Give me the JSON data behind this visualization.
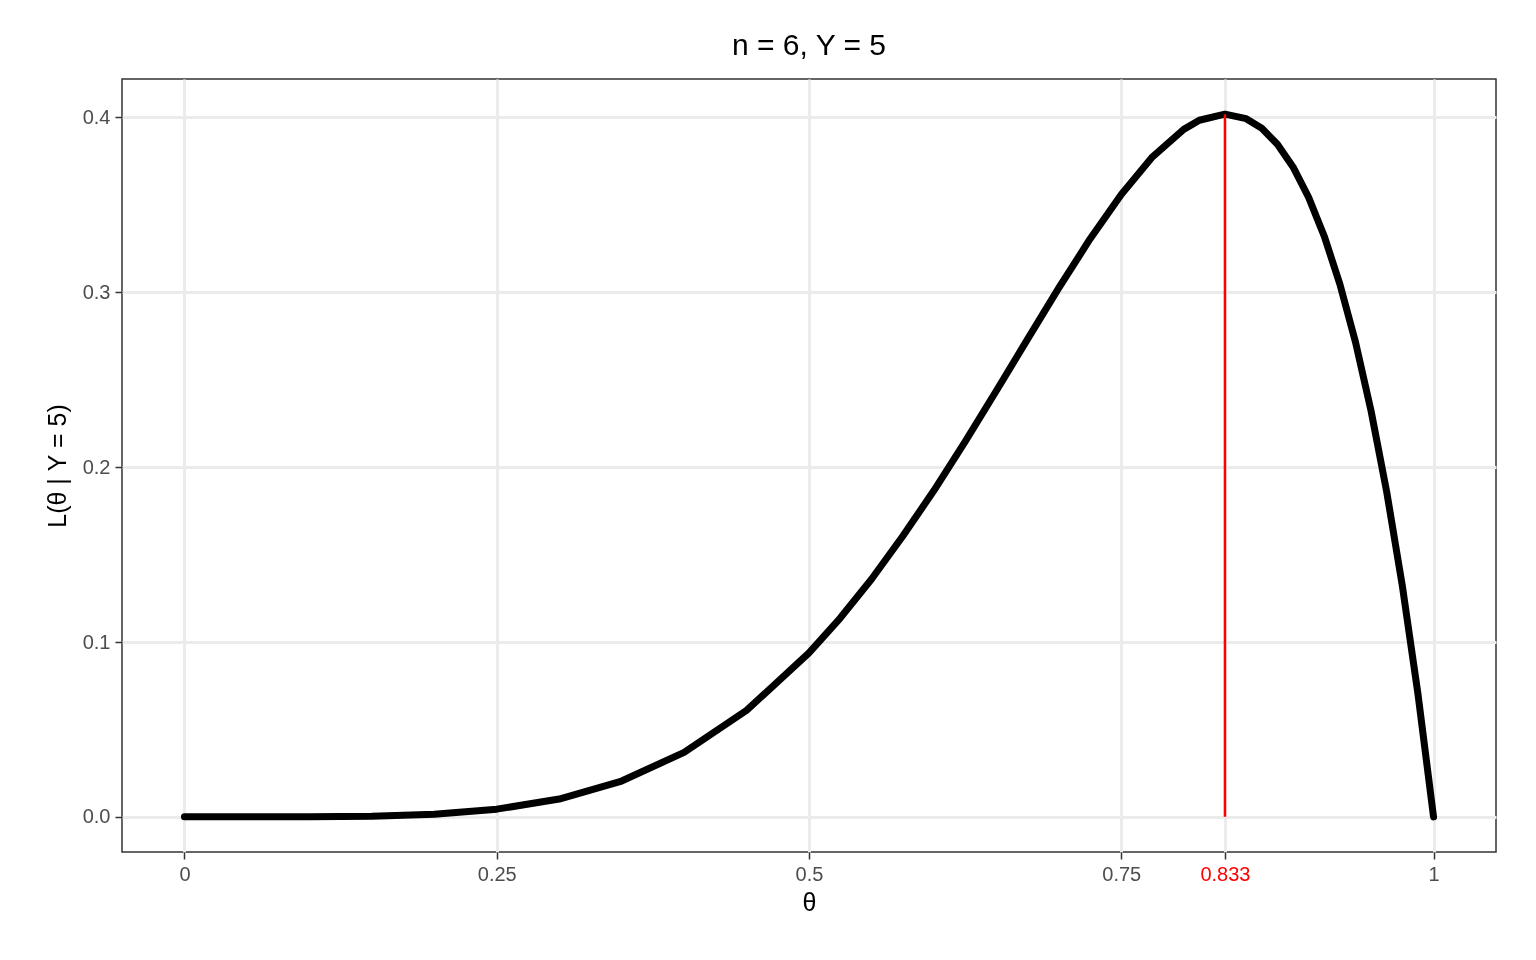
{
  "chart_data": {
    "type": "line",
    "title": "n = 6, Y = 5",
    "xlabel": "θ",
    "ylabel": "L(θ | Y = 5)",
    "x": [
      0,
      0.05,
      0.1,
      0.15,
      0.2,
      0.25,
      0.3,
      0.35,
      0.4,
      0.45,
      0.5,
      0.525,
      0.55,
      0.575,
      0.6,
      0.625,
      0.65,
      0.675,
      0.7,
      0.725,
      0.75,
      0.775,
      0.8,
      0.8125,
      0.833,
      0.85,
      0.8625,
      0.875,
      0.8875,
      0.9,
      0.9125,
      0.925,
      0.9375,
      0.95,
      0.9625,
      0.975,
      0.9875,
      1
    ],
    "series": [
      {
        "color": "#000000",
        "values": [
          0,
          0,
          0.0001,
          0.0004,
          0.0015,
          0.0044,
          0.0102,
          0.0205,
          0.0369,
          0.0609,
          0.0938,
          0.1137,
          0.1359,
          0.1605,
          0.1866,
          0.2146,
          0.2437,
          0.2732,
          0.3025,
          0.3305,
          0.356,
          0.3775,
          0.3932,
          0.3984,
          0.4019,
          0.3993,
          0.3938,
          0.3847,
          0.3717,
          0.3543,
          0.3321,
          0.3047,
          0.2716,
          0.2321,
          0.1859,
          0.1322,
          0.0704,
          0
        ]
      }
    ],
    "xlim": [
      -0.05,
      1.05
    ],
    "ylim": [
      -0.0201,
      0.422
    ],
    "xticks": [
      0,
      0.25,
      0.5,
      0.75,
      1
    ],
    "yticks": [
      {
        "value": 0,
        "label": "0.0"
      },
      0.1,
      0.2,
      0.3,
      0.4
    ],
    "ref_lines": [
      {
        "axis": "x",
        "value": 0.833,
        "label": "0.833",
        "color": "#ff0000"
      }
    ],
    "grid": true,
    "marker": "none",
    "line_style": "solid"
  }
}
